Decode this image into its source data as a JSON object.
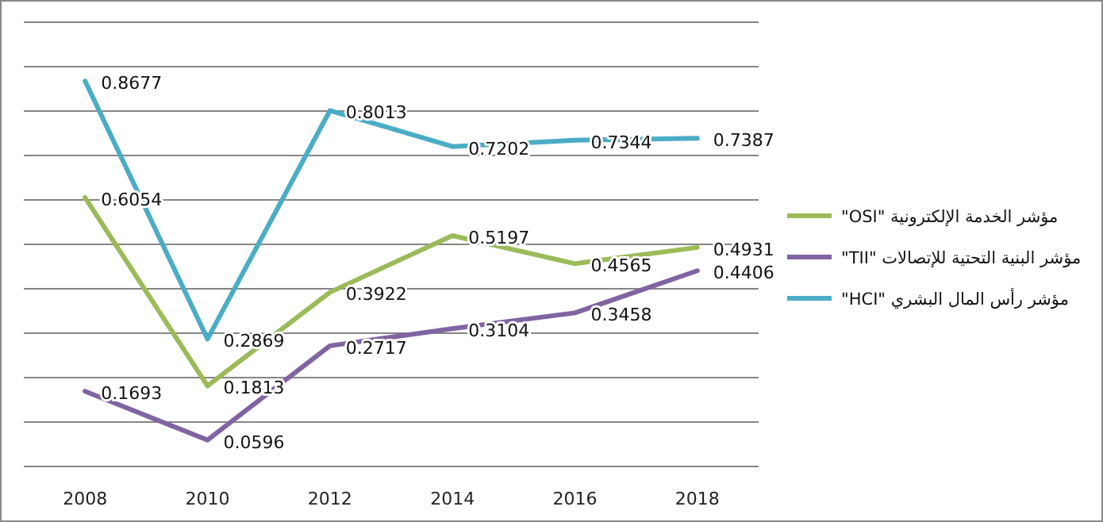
{
  "chart_data": {
    "type": "line",
    "categories": [
      "2008",
      "2010",
      "2012",
      "2014",
      "2016",
      "2018"
    ],
    "series": [
      {
        "name": "مؤشر الخدمة الإلكترونية \"OSI\"",
        "color": "#9bbb59",
        "values": [
          0.6054,
          0.1813,
          0.3922,
          0.5197,
          0.4565,
          0.4931
        ]
      },
      {
        "name": "مؤشر البنية التحتية للإتصالات \"TII\"",
        "color": "#8064a2",
        "values": [
          0.1693,
          0.0596,
          0.2717,
          0.3104,
          0.3458,
          0.4406
        ]
      },
      {
        "name": "مؤشر رأس المال البشري \"HCI\"",
        "color": "#4bacc6",
        "values": [
          0.8677,
          0.2869,
          0.8013,
          0.7202,
          0.7344,
          0.7387
        ]
      }
    ],
    "ylim": [
      0,
      1
    ],
    "yticks": [
      {
        "value": 0,
        "label": null
      },
      {
        "value": 0.1,
        "label": null
      },
      {
        "value": 0.2,
        "label": null
      },
      {
        "value": 0.3,
        "label": null
      },
      {
        "value": 0.4,
        "label": null
      },
      {
        "value": 0.5,
        "label": null
      },
      {
        "value": 0.6,
        "label": null
      },
      {
        "value": 0.7,
        "label": null
      },
      {
        "value": 0.8,
        "label": null
      },
      {
        "value": 0.9,
        "label": null
      },
      {
        "value": 1,
        "label": null
      }
    ],
    "tick_labels": "x",
    "grid": "y",
    "data_labels": true,
    "legend": "right",
    "marker": "none",
    "line_style": "solid"
  }
}
